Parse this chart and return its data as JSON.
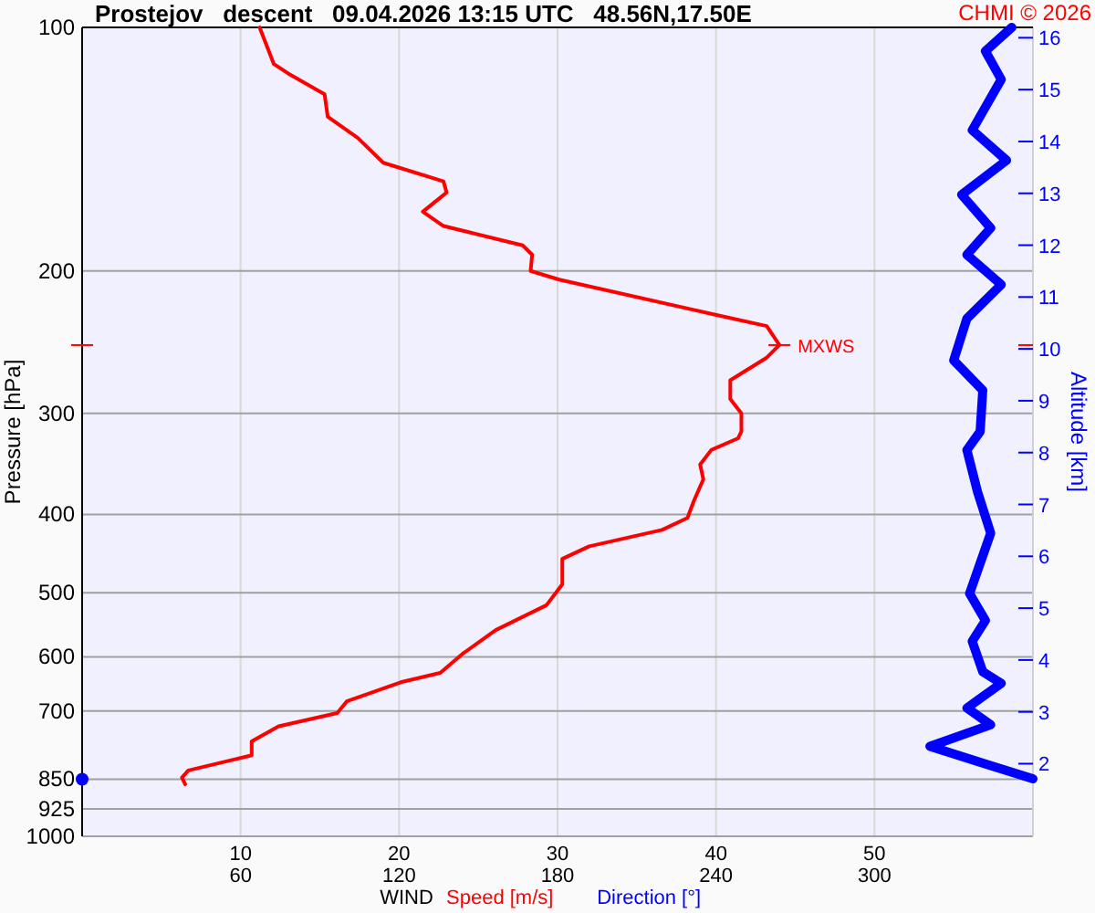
{
  "chart_data": {
    "type": "line",
    "orientation": "horizontal",
    "title": "Prostejov   descent   09.04.2026 13:15 UTC   48.56N,17.50E",
    "xlabel": "WIND",
    "ylabel": "Pressure [hPa]",
    "y2label": "Altitude [km]",
    "annotations": [
      "CHMI © 2026",
      {
        "text": "MXWS",
        "x": 44.0,
        "y": 247
      }
    ],
    "log": "y",
    "grid": true,
    "legend": "bottom",
    "xlim": [
      0,
      60
    ],
    "xticks": [
      10,
      20,
      30,
      40,
      50
    ],
    "x2lim": [
      0,
      360
    ],
    "x2ticks": [
      60,
      120,
      180,
      240,
      300
    ],
    "ylim": [
      1000,
      100
    ],
    "yticks": [
      100,
      200,
      300,
      400,
      500,
      600,
      700,
      850,
      925,
      1000
    ],
    "y2lim": [
      0.6,
      16.2
    ],
    "y2ticks": [
      2,
      3,
      4,
      5,
      6,
      7,
      8,
      9,
      10,
      11,
      12,
      13,
      14,
      15,
      16
    ],
    "series": [
      {
        "name": "Speed [m/s]",
        "color": "#ff0000",
        "x": [
          100,
          111,
          114,
          121,
          129,
          137,
          147,
          155,
          160,
          169,
          176,
          186,
          191,
          200,
          205,
          226,
          234,
          247,
          256,
          273,
          288,
          300,
          316,
          322,
          333,
          347,
          362,
          385,
          404,
          418,
          438,
          454,
          488,
          518,
          556,
          595,
          628,
          645,
          681,
          704,
          731,
          763,
          794,
          829,
          846,
          862
        ],
        "values": [
          11.2,
          12.1,
          13.0,
          15.3,
          15.5,
          17.4,
          19.0,
          22.8,
          23.0,
          21.5,
          22.8,
          27.8,
          28.4,
          28.3,
          30.1,
          39.7,
          43.2,
          44.0,
          43.2,
          40.9,
          40.9,
          41.6,
          41.6,
          41.4,
          39.7,
          39.0,
          39.2,
          38.6,
          38.2,
          36.6,
          32.0,
          30.3,
          30.3,
          29.3,
          26.1,
          24.0,
          22.6,
          20.1,
          16.7,
          16.1,
          12.4,
          10.7,
          10.7,
          6.7,
          6.3,
          6.5
        ]
      },
      {
        "name": "Direction [°]",
        "color": "#0000ff",
        "axis": "x2",
        "x": [
          100,
          107,
          116,
          134,
          146,
          161,
          177,
          191,
          208,
          229,
          258,
          281,
          316,
          333,
          375,
          422,
          501,
          541,
          574,
          626,
          647,
          694,
          728,
          774,
          814,
          849
        ],
        "values": [
          352,
          342,
          348,
          337,
          350,
          333,
          344,
          335,
          348,
          335,
          330,
          341,
          340,
          335,
          339,
          344,
          336,
          342,
          337,
          341,
          348,
          335,
          344,
          321,
          342,
          360
        ]
      },
      {
        "type": "scatter",
        "axis": "x2",
        "marker": "circle",
        "color": "#0000ff",
        "x": [
          850
        ],
        "values": [
          0
        ]
      }
    ]
  }
}
